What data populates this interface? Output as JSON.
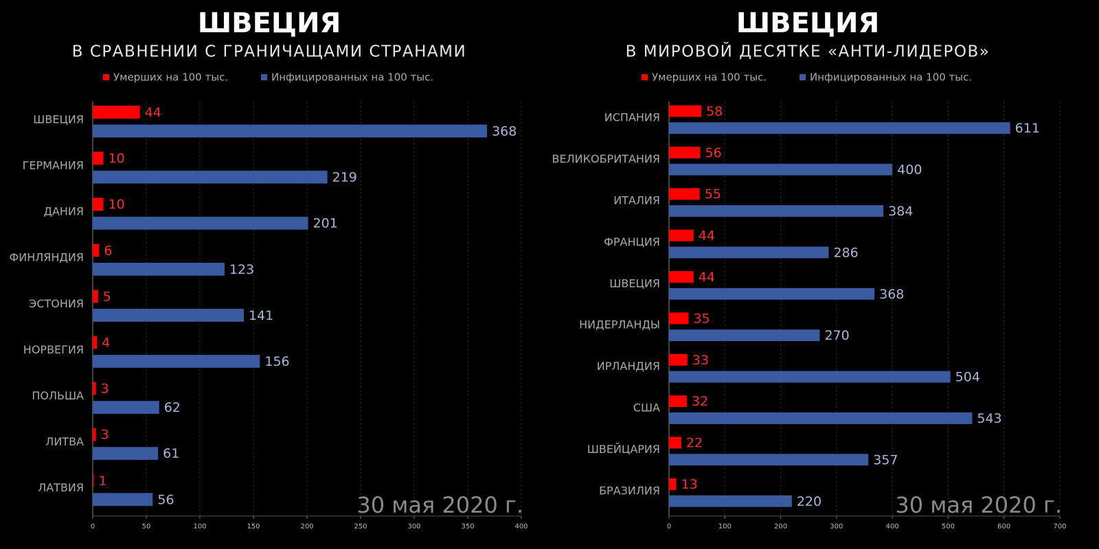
{
  "chart_data": [
    {
      "type": "hbar",
      "title": "ШВЕЦИЯ",
      "subtitle": "В СРАВНЕНИИ С ГРАНИЧАЩАМИ СТРАНАМИ",
      "categories": [
        "ШВЕЦИЯ",
        "ГЕРМАНИЯ",
        "ДАНИЯ",
        "ФИНЛЯНДИЯ",
        "ЭСТОНИЯ",
        "НОРВЕГИЯ",
        "ПОЛЬША",
        "ЛИТВА",
        "ЛАТВИЯ"
      ],
      "series": [
        {
          "name": "Умерших на 100 тыс.",
          "color": "#ff0000",
          "label_color": "#ff2a2a",
          "values": [
            44,
            10,
            10,
            6,
            5,
            4,
            3,
            3,
            1
          ]
        },
        {
          "name": "Инфицированных на 100 тыс.",
          "color": "#3a5ba0",
          "label_color": "#a9b6d8",
          "values": [
            368,
            219,
            201,
            123,
            141,
            156,
            62,
            61,
            56
          ]
        }
      ],
      "xlim": [
        0,
        400
      ],
      "xticks": [
        0,
        50,
        100,
        150,
        200,
        250,
        300,
        350,
        400
      ],
      "grid": true,
      "annotation": "30 мая 2020 г."
    },
    {
      "type": "hbar",
      "title": "ШВЕЦИЯ",
      "subtitle": "В МИРОВОЙ ДЕСЯТКЕ «АНТИ-ЛИДЕРОВ»",
      "categories": [
        "ИСПАНИЯ",
        "ВЕЛИКОБРИТАНИЯ",
        "ИТАЛИЯ",
        "ФРАНЦИЯ",
        "ШВЕЦИЯ",
        "НИДЕРЛАНДЫ",
        "ИРЛАНДИЯ",
        "США",
        "ШВЕЙЦАРИЯ",
        "БРАЗИЛИЯ"
      ],
      "series": [
        {
          "name": "Умерших на 100 тыс.",
          "color": "#ff0000",
          "label_color": "#ff2a2a",
          "values": [
            58,
            56,
            55,
            44,
            44,
            35,
            33,
            32,
            22,
            13
          ]
        },
        {
          "name": "Инфицированных на 100 тыс.",
          "color": "#3a5ba0",
          "label_color": "#a9b6d8",
          "values": [
            611,
            400,
            384,
            286,
            368,
            270,
            504,
            543,
            357,
            220
          ]
        }
      ],
      "xlim": [
        0,
        700
      ],
      "xticks": [
        0,
        100,
        200,
        300,
        400,
        500,
        600,
        700
      ],
      "grid": true,
      "annotation": "30 мая 2020 г."
    }
  ]
}
